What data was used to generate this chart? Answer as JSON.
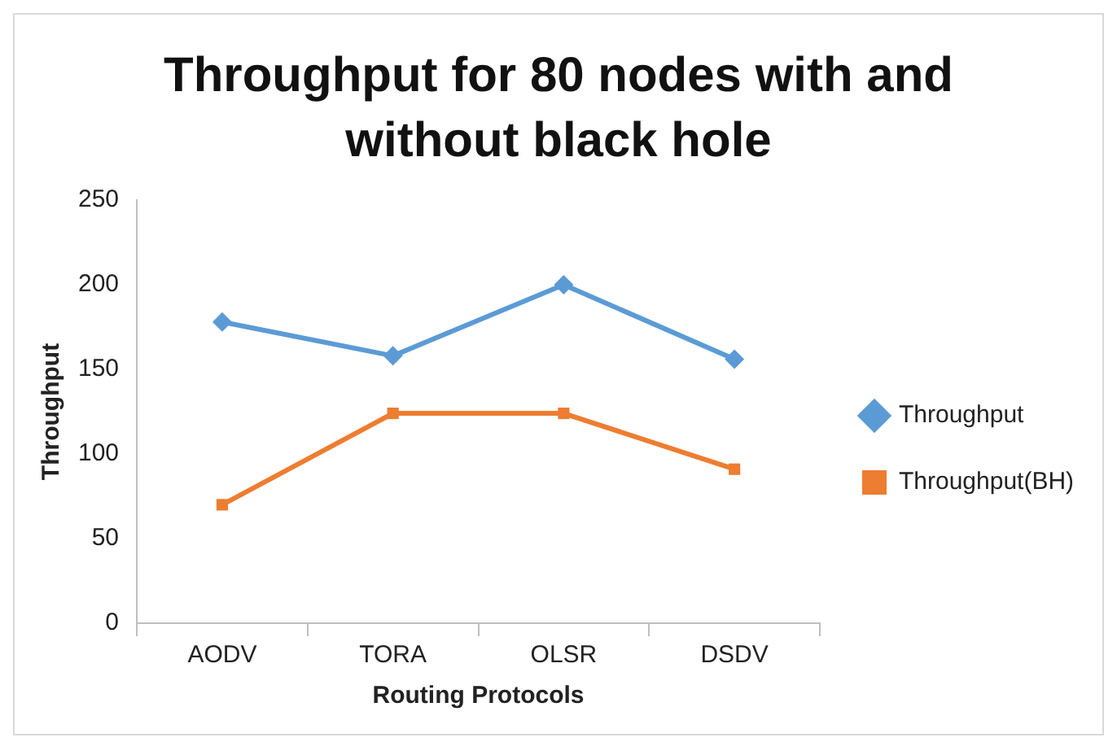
{
  "chart_data": {
    "type": "line",
    "title": "Throughput for 80 nodes with and without black hole",
    "xlabel": "Routing Protocols",
    "ylabel": "Throughput",
    "categories": [
      "AODV",
      "TORA",
      "OLSR",
      "DSDV"
    ],
    "series": [
      {
        "name": "Throughput",
        "color": "#5b9bd5",
        "marker": "diamond",
        "values": [
          178,
          158,
          200,
          156
        ]
      },
      {
        "name": "Throughput(BH)",
        "color": "#ed7d31",
        "marker": "square",
        "values": [
          70,
          124,
          124,
          91
        ]
      }
    ],
    "ylim": [
      0,
      250
    ],
    "yticks": [
      0,
      50,
      100,
      150,
      200,
      250
    ],
    "grid": false,
    "legend": "right",
    "line_style": "solid"
  }
}
